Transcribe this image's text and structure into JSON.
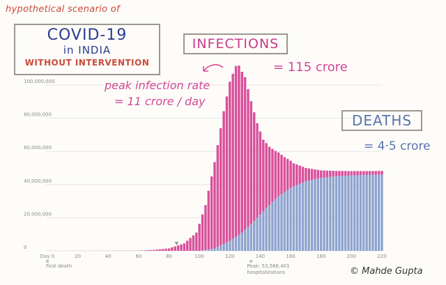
{
  "subtitle": "hypothetical scenario of",
  "title": {
    "main": "COVID-19",
    "sub": "in INDIA",
    "condition": "WITHOUT INTERVENTION"
  },
  "infections": {
    "label": "INFECTIONS",
    "value": "= 115 crore"
  },
  "peak_note": {
    "label": "peak infection rate",
    "value": "= 11 crore / day"
  },
  "deaths": {
    "label": "DEATHS",
    "value": "= 4·5 crore"
  },
  "credit": "© Mahde Gupta",
  "colors": {
    "infections": "#d94f9b",
    "deaths": "#8ea3cf",
    "grid": "#e6e6e6",
    "annotation_ink": "#d24a97"
  },
  "chart_data": {
    "type": "bar",
    "stacked": true,
    "x_label_prefix": "Day",
    "xlim": [
      0,
      220
    ],
    "ylim": [
      0,
      100000000
    ],
    "x_ticks": [
      "Day 0",
      "20",
      "40",
      "60",
      "80",
      "100",
      "120",
      "140",
      "160",
      "180",
      "200",
      "220"
    ],
    "x_tick_values": [
      0,
      20,
      40,
      60,
      80,
      100,
      120,
      140,
      160,
      180,
      200,
      220
    ],
    "y_ticks": [
      "0",
      "20,000,000",
      "40,000,000",
      "60,000,000",
      "80,000,000",
      "100,000,000"
    ],
    "y_tick_values": [
      0,
      20000000,
      40000000,
      60000000,
      80000000,
      100000000
    ],
    "bar_step_days": 2,
    "annotations": [
      {
        "day": 0,
        "label": "First death"
      },
      {
        "day": 134,
        "label": "Peak: 53,566,401 hospitalizations"
      }
    ],
    "marker_day": 85,
    "series": [
      {
        "name": "Deaths",
        "color": "#8ea3cf",
        "points": [
          [
            0,
            0
          ],
          [
            100,
            0
          ],
          [
            110,
            1500000
          ],
          [
            120,
            6000000
          ],
          [
            128,
            11000000
          ],
          [
            136,
            18000000
          ],
          [
            144,
            26000000
          ],
          [
            152,
            33000000
          ],
          [
            160,
            38000000
          ],
          [
            170,
            42000000
          ],
          [
            180,
            44000000
          ],
          [
            190,
            45000000
          ],
          [
            200,
            45500000
          ],
          [
            210,
            45800000
          ],
          [
            220,
            46000000
          ]
        ]
      },
      {
        "name": "Infections (active)",
        "color": "#d94f9b",
        "points": [
          [
            0,
            0
          ],
          [
            60,
            100000
          ],
          [
            70,
            600000
          ],
          [
            80,
            1500000
          ],
          [
            90,
            4500000
          ],
          [
            98,
            11000000
          ],
          [
            104,
            27000000
          ],
          [
            110,
            52000000
          ],
          [
            116,
            80000000
          ],
          [
            120,
            96000000
          ],
          [
            124,
            103000000
          ],
          [
            126,
            102000000
          ],
          [
            130,
            92000000
          ],
          [
            134,
            74000000
          ],
          [
            138,
            57000000
          ],
          [
            142,
            43000000
          ],
          [
            146,
            35000000
          ],
          [
            150,
            29000000
          ],
          [
            156,
            21000000
          ],
          [
            162,
            14000000
          ],
          [
            170,
            8000000
          ],
          [
            180,
            4500000
          ],
          [
            190,
            3200000
          ],
          [
            200,
            2600000
          ],
          [
            210,
            2300000
          ],
          [
            220,
            2200000
          ]
        ]
      }
    ]
  }
}
